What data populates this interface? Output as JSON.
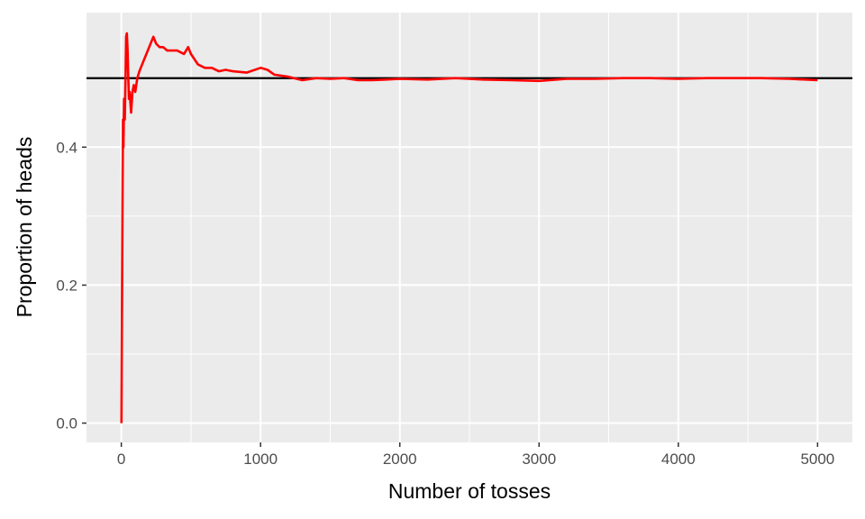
{
  "chart_data": {
    "type": "line",
    "xlabel": "Number of tosses",
    "ylabel": "Proportion of heads",
    "xlim": [
      -250,
      5250
    ],
    "ylim": [
      -0.028,
      0.595
    ],
    "x_ticks": [
      0,
      1000,
      2000,
      3000,
      4000,
      5000
    ],
    "x_tick_labels": [
      "0",
      "1000",
      "2000",
      "3000",
      "4000",
      "5000"
    ],
    "y_ticks": [
      0.0,
      0.2,
      0.4
    ],
    "y_tick_labels": [
      "0.0",
      "0.2",
      "0.4"
    ],
    "grid": true,
    "reference_line": {
      "y": 0.5,
      "color": "#000000"
    },
    "series": [
      {
        "color": "#ff0000",
        "x": [
          1,
          5,
          8,
          12,
          15,
          20,
          25,
          30,
          35,
          40,
          45,
          50,
          55,
          60,
          70,
          80,
          90,
          100,
          115,
          130,
          150,
          170,
          190,
          210,
          230,
          250,
          275,
          300,
          330,
          360,
          400,
          450,
          480,
          500,
          550,
          600,
          650,
          700,
          750,
          800,
          900,
          1000,
          1050,
          1100,
          1200,
          1300,
          1400,
          1500,
          1600,
          1700,
          1800,
          1900,
          2000,
          2200,
          2400,
          2600,
          2800,
          3000,
          3200,
          3400,
          3600,
          3800,
          4000,
          4200,
          4400,
          4600,
          4800,
          5000
        ],
        "y": [
          0.0,
          0.17,
          0.3,
          0.44,
          0.4,
          0.47,
          0.44,
          0.5,
          0.56,
          0.565,
          0.54,
          0.5,
          0.47,
          0.48,
          0.45,
          0.48,
          0.49,
          0.48,
          0.5,
          0.51,
          0.52,
          0.53,
          0.54,
          0.55,
          0.56,
          0.55,
          0.545,
          0.545,
          0.54,
          0.54,
          0.54,
          0.535,
          0.545,
          0.535,
          0.52,
          0.515,
          0.515,
          0.51,
          0.512,
          0.51,
          0.508,
          0.515,
          0.512,
          0.505,
          0.502,
          0.497,
          0.5,
          0.499,
          0.5,
          0.497,
          0.497,
          0.498,
          0.499,
          0.498,
          0.5,
          0.498,
          0.497,
          0.496,
          0.499,
          0.499,
          0.5,
          0.5,
          0.499,
          0.5,
          0.5,
          0.5,
          0.499,
          0.497
        ]
      }
    ]
  }
}
